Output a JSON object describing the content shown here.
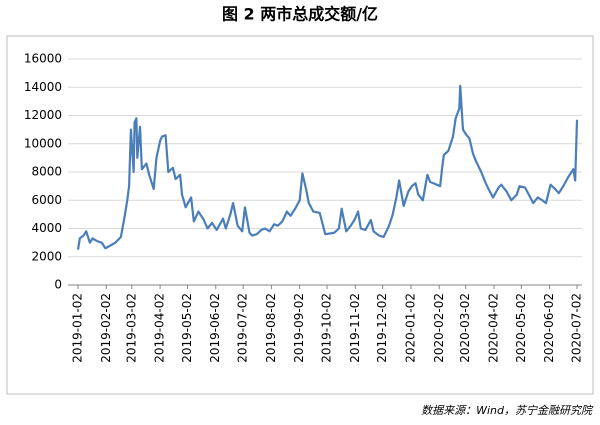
{
  "chart_data": {
    "type": "line",
    "title": "图 2 两市总成交额/亿",
    "source": "数据来源：Wind，苏宁金融研究院",
    "x": [
      "2019-01-02",
      "2019-01-04",
      "2019-01-08",
      "2019-01-11",
      "2019-01-15",
      "2019-01-18",
      "2019-01-23",
      "2019-01-28",
      "2019-02-01",
      "2019-02-12",
      "2019-02-18",
      "2019-02-22",
      "2019-02-25",
      "2019-02-27",
      "2019-03-01",
      "2019-03-04",
      "2019-03-05",
      "2019-03-07",
      "2019-03-08",
      "2019-03-11",
      "2019-03-13",
      "2019-03-18",
      "2019-03-21",
      "2019-03-26",
      "2019-03-29",
      "2019-04-02",
      "2019-04-04",
      "2019-04-08",
      "2019-04-11",
      "2019-04-16",
      "2019-04-19",
      "2019-04-24",
      "2019-04-26",
      "2019-04-30",
      "2019-05-06",
      "2019-05-09",
      "2019-05-14",
      "2019-05-20",
      "2019-05-24",
      "2019-05-29",
      "2019-06-03",
      "2019-06-10",
      "2019-06-13",
      "2019-06-18",
      "2019-06-21",
      "2019-06-26",
      "2019-07-01",
      "2019-07-04",
      "2019-07-09",
      "2019-07-12",
      "2019-07-17",
      "2019-07-22",
      "2019-07-26",
      "2019-07-31",
      "2019-08-05",
      "2019-08-09",
      "2019-08-14",
      "2019-08-19",
      "2019-08-23",
      "2019-08-28",
      "2019-09-02",
      "2019-09-05",
      "2019-09-09",
      "2019-09-12",
      "2019-09-17",
      "2019-09-24",
      "2019-09-30",
      "2019-10-10",
      "2019-10-15",
      "2019-10-18",
      "2019-10-23",
      "2019-10-28",
      "2019-11-01",
      "2019-11-05",
      "2019-11-08",
      "2019-11-13",
      "2019-11-19",
      "2019-11-22",
      "2019-11-28",
      "2019-12-03",
      "2019-12-09",
      "2019-12-13",
      "2019-12-17",
      "2019-12-20",
      "2019-12-25",
      "2019-12-30",
      "2020-01-03",
      "2020-01-07",
      "2020-01-10",
      "2020-01-15",
      "2020-01-20",
      "2020-01-23",
      "2020-02-03",
      "2020-02-05",
      "2020-02-07",
      "2020-02-12",
      "2020-02-17",
      "2020-02-20",
      "2020-02-24",
      "2020-02-25",
      "2020-02-28",
      "2020-03-03",
      "2020-03-06",
      "2020-03-10",
      "2020-03-13",
      "2020-03-19",
      "2020-03-24",
      "2020-03-27",
      "2020-04-01",
      "2020-04-07",
      "2020-04-10",
      "2020-04-16",
      "2020-04-21",
      "2020-04-27",
      "2020-04-30",
      "2020-05-06",
      "2020-05-11",
      "2020-05-15",
      "2020-05-20",
      "2020-05-25",
      "2020-05-29",
      "2020-06-03",
      "2020-06-08",
      "2020-06-12",
      "2020-06-17",
      "2020-06-22",
      "2020-06-28",
      "2020-06-30",
      "2020-07-02"
    ],
    "series": [
      {
        "name": "两市总成交额",
        "color": "#4a7ebb",
        "values": [
          2500,
          3300,
          3500,
          3800,
          3000,
          3300,
          3100,
          3000,
          2600,
          3000,
          3400,
          4800,
          6000,
          7000,
          11000,
          8000,
          11500,
          11800,
          9000,
          11200,
          8200,
          8600,
          7800,
          6800,
          9000,
          10200,
          10500,
          10600,
          8000,
          8300,
          7500,
          7800,
          6400,
          5500,
          6200,
          4500,
          5200,
          4600,
          4000,
          4400,
          3900,
          4700,
          4000,
          5000,
          5800,
          4200,
          3800,
          5500,
          3700,
          3500,
          3600,
          3900,
          4000,
          3800,
          4300,
          4200,
          4500,
          5200,
          4900,
          5400,
          6000,
          7900,
          6800,
          5800,
          5200,
          5100,
          3600,
          3700,
          4000,
          5400,
          3800,
          4200,
          4600,
          5200,
          4000,
          3900,
          4600,
          3800,
          3500,
          3400,
          4200,
          5000,
          6200,
          7400,
          5600,
          6600,
          7000,
          7200,
          6400,
          6000,
          7800,
          7300,
          7000,
          8200,
          9200,
          9500,
          10500,
          11800,
          12500,
          14100,
          11000,
          10600,
          10400,
          9300,
          8800,
          8000,
          7200,
          6800,
          6200,
          6900,
          7100,
          6600,
          6000,
          6400,
          7000,
          6900,
          6300,
          5800,
          6200,
          6000,
          5800,
          7100,
          6800,
          6500,
          7000,
          7600,
          8200,
          7400,
          11700
        ]
      }
    ],
    "xlim": [
      "2019-01-02",
      "2020-07-02"
    ],
    "xticks": [
      "2019-01-02",
      "2019-02-02",
      "2019-03-02",
      "2019-04-02",
      "2019-05-02",
      "2019-06-02",
      "2019-07-02",
      "2019-08-02",
      "2019-09-02",
      "2019-10-02",
      "2019-11-02",
      "2019-12-02",
      "2020-01-02",
      "2020-02-02",
      "2020-03-02",
      "2020-04-02",
      "2020-05-02",
      "2020-06-02",
      "2020-07-02"
    ],
    "ylim": [
      0,
      16000
    ],
    "yticks": [
      0,
      2000,
      4000,
      6000,
      8000,
      10000,
      12000,
      14000,
      16000
    ],
    "grid": true
  }
}
